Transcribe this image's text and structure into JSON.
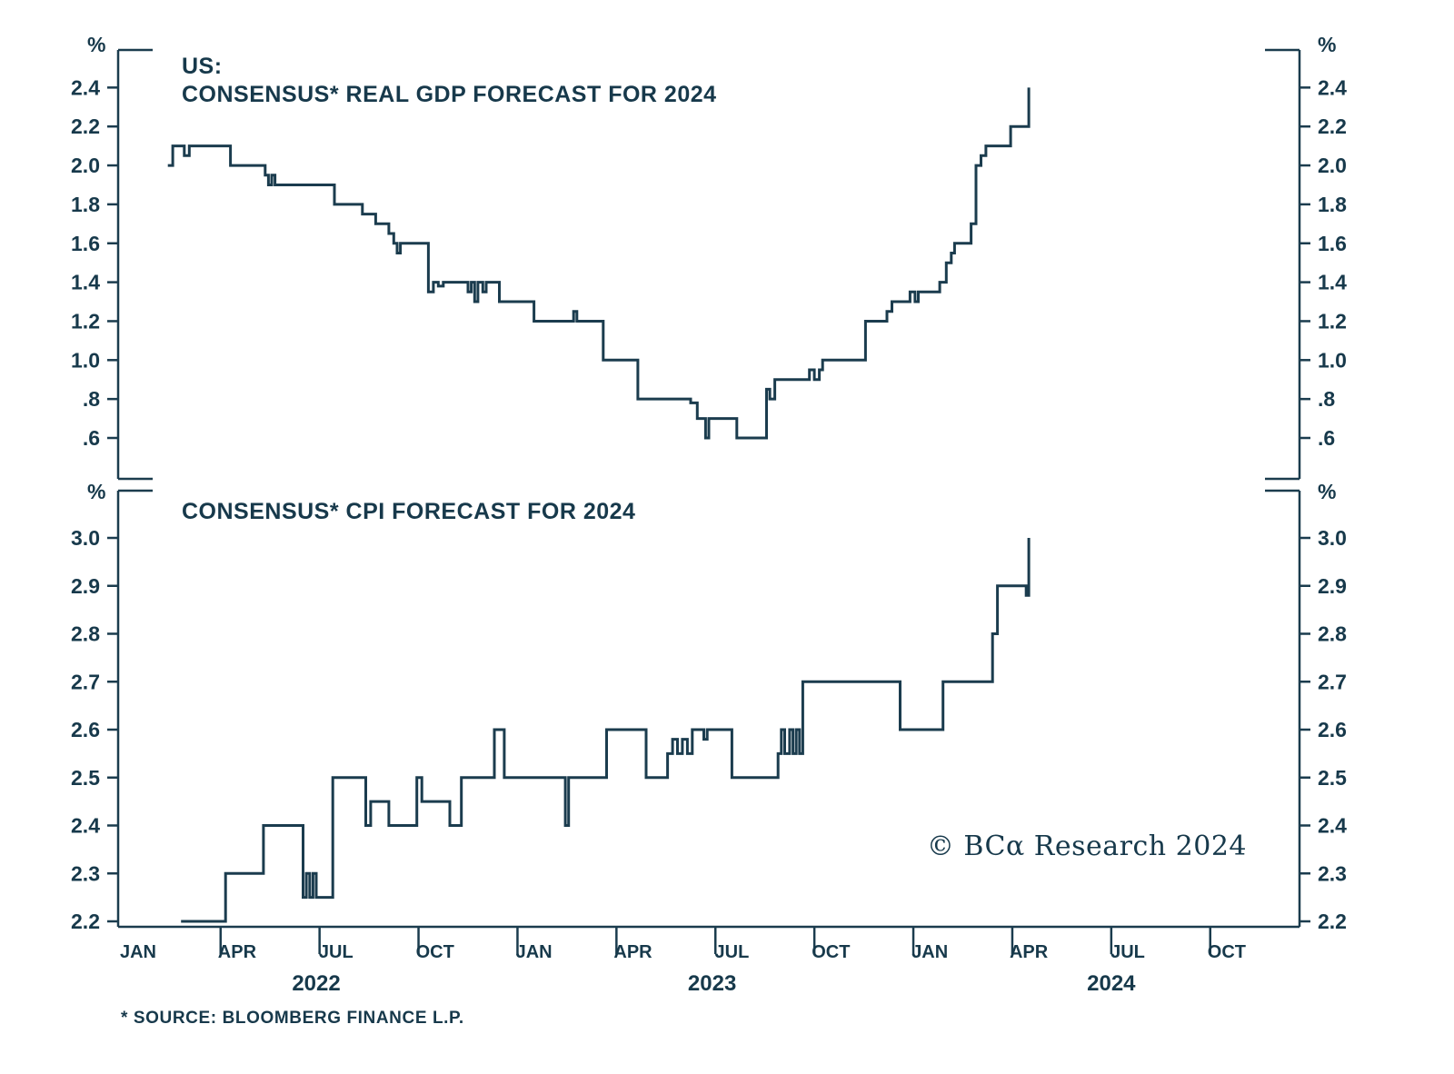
{
  "colors": {
    "line": "#1b3c4e",
    "text": "#17394b"
  },
  "branding": {
    "copyright": "© BCα Research 2024"
  },
  "footer": {
    "source_note": "* SOURCE: BLOOMBERG FINANCE L.P."
  },
  "x_axis": {
    "ticks": [
      {
        "month": 0,
        "label": "JAN"
      },
      {
        "month": 3,
        "label": "APR"
      },
      {
        "month": 6,
        "label": "JUL"
      },
      {
        "month": 9,
        "label": "OCT"
      },
      {
        "month": 12,
        "label": "JAN"
      },
      {
        "month": 15,
        "label": "APR"
      },
      {
        "month": 18,
        "label": "JUL"
      },
      {
        "month": 21,
        "label": "OCT"
      },
      {
        "month": 24,
        "label": "JAN"
      },
      {
        "month": 27,
        "label": "APR"
      },
      {
        "month": 30,
        "label": "JUL"
      },
      {
        "month": 33,
        "label": "OCT"
      }
    ],
    "minor_tick_months": [
      2.5,
      5.5,
      8.5,
      11.5,
      14.5,
      17.5,
      20.5,
      23.5,
      26.5,
      29.5,
      32.5
    ],
    "years": [
      {
        "month": 5.4,
        "label": "2022"
      },
      {
        "month": 17.4,
        "label": "2023"
      },
      {
        "month": 29.5,
        "label": "2024"
      }
    ]
  },
  "chart_data": [
    {
      "type": "line",
      "style": "step",
      "title_line1": "US:",
      "title_line2": "CONSENSUS* REAL GDP FORECAST FOR 2024",
      "unit": "%",
      "ylim": [
        0.5,
        2.55
      ],
      "yticks": [
        {
          "value": 2.4,
          "label": "2.4"
        },
        {
          "value": 2.2,
          "label": "2.2"
        },
        {
          "value": 2.0,
          "label": "2.0"
        },
        {
          "value": 1.8,
          "label": "1.8"
        },
        {
          "value": 1.6,
          "label": "1.6"
        },
        {
          "value": 1.4,
          "label": "1.4"
        },
        {
          "value": 1.2,
          "label": "1.2"
        },
        {
          "value": 1.0,
          "label": "1.0"
        },
        {
          "value": 0.8,
          "label": ".8"
        },
        {
          "value": 0.6,
          "label": ".6"
        }
      ],
      "series": [
        {
          "name": "consensus-real-gdp-forecast-2024",
          "points": [
            [
              0.9,
              2.0
            ],
            [
              1.05,
              2.1
            ],
            [
              1.4,
              2.05
            ],
            [
              1.55,
              2.1
            ],
            [
              2.7,
              2.1
            ],
            [
              2.8,
              2.0
            ],
            [
              3.75,
              2.0
            ],
            [
              3.85,
              1.95
            ],
            [
              3.95,
              1.9
            ],
            [
              4.05,
              1.95
            ],
            [
              4.15,
              1.9
            ],
            [
              5.85,
              1.9
            ],
            [
              5.95,
              1.8
            ],
            [
              6.7,
              1.8
            ],
            [
              6.8,
              1.75
            ],
            [
              7.1,
              1.75
            ],
            [
              7.2,
              1.7
            ],
            [
              7.5,
              1.7
            ],
            [
              7.6,
              1.65
            ],
            [
              7.75,
              1.6
            ],
            [
              7.85,
              1.55
            ],
            [
              7.95,
              1.6
            ],
            [
              8.7,
              1.6
            ],
            [
              8.8,
              1.35
            ],
            [
              8.95,
              1.4
            ],
            [
              9.1,
              1.38
            ],
            [
              9.25,
              1.4
            ],
            [
              9.9,
              1.4
            ],
            [
              10.0,
              1.35
            ],
            [
              10.1,
              1.4
            ],
            [
              10.2,
              1.3
            ],
            [
              10.3,
              1.4
            ],
            [
              10.45,
              1.35
            ],
            [
              10.55,
              1.4
            ],
            [
              10.85,
              1.4
            ],
            [
              10.95,
              1.3
            ],
            [
              11.9,
              1.3
            ],
            [
              12.0,
              1.2
            ],
            [
              13.1,
              1.2
            ],
            [
              13.2,
              1.25
            ],
            [
              13.3,
              1.2
            ],
            [
              14.0,
              1.2
            ],
            [
              14.1,
              1.0
            ],
            [
              15.0,
              1.0
            ],
            [
              15.15,
              0.8
            ],
            [
              16.6,
              0.8
            ],
            [
              16.75,
              0.78
            ],
            [
              16.95,
              0.7
            ],
            [
              17.1,
              0.7
            ],
            [
              17.2,
              0.6
            ],
            [
              17.3,
              0.7
            ],
            [
              18.05,
              0.7
            ],
            [
              18.15,
              0.6
            ],
            [
              18.95,
              0.6
            ],
            [
              19.05,
              0.85
            ],
            [
              19.15,
              0.8
            ],
            [
              19.3,
              0.9
            ],
            [
              20.2,
              0.9
            ],
            [
              20.35,
              0.95
            ],
            [
              20.5,
              0.9
            ],
            [
              20.65,
              0.95
            ],
            [
              20.75,
              1.0
            ],
            [
              21.9,
              1.0
            ],
            [
              22.05,
              1.2
            ],
            [
              22.6,
              1.2
            ],
            [
              22.7,
              1.25
            ],
            [
              22.85,
              1.3
            ],
            [
              23.3,
              1.3
            ],
            [
              23.4,
              1.35
            ],
            [
              23.55,
              1.3
            ],
            [
              23.65,
              1.35
            ],
            [
              24.2,
              1.35
            ],
            [
              24.3,
              1.4
            ],
            [
              24.5,
              1.5
            ],
            [
              24.65,
              1.55
            ],
            [
              24.75,
              1.6
            ],
            [
              25.1,
              1.6
            ],
            [
              25.25,
              1.7
            ],
            [
              25.4,
              2.0
            ],
            [
              25.55,
              2.05
            ],
            [
              25.7,
              2.1
            ],
            [
              26.35,
              2.1
            ],
            [
              26.45,
              2.2
            ],
            [
              26.9,
              2.2
            ],
            [
              27.0,
              2.4
            ]
          ]
        }
      ]
    },
    {
      "type": "line",
      "style": "step",
      "title": "CONSENSUS* CPI FORECAST FOR 2024",
      "unit": "%",
      "ylim": [
        2.15,
        3.05
      ],
      "yticks": [
        {
          "value": 3.0,
          "label": "3.0"
        },
        {
          "value": 2.9,
          "label": "2.9"
        },
        {
          "value": 2.8,
          "label": "2.8"
        },
        {
          "value": 2.7,
          "label": "2.7"
        },
        {
          "value": 2.6,
          "label": "2.6"
        },
        {
          "value": 2.5,
          "label": "2.5"
        },
        {
          "value": 2.4,
          "label": "2.4"
        },
        {
          "value": 2.3,
          "label": "2.3"
        },
        {
          "value": 2.2,
          "label": "2.2"
        }
      ],
      "series": [
        {
          "name": "consensus-cpi-forecast-2024",
          "points": [
            [
              1.3,
              2.2
            ],
            [
              2.55,
              2.2
            ],
            [
              2.65,
              2.3
            ],
            [
              3.7,
              2.3
            ],
            [
              3.8,
              2.4
            ],
            [
              4.9,
              2.4
            ],
            [
              5.0,
              2.25
            ],
            [
              5.1,
              2.3
            ],
            [
              5.2,
              2.25
            ],
            [
              5.3,
              2.3
            ],
            [
              5.4,
              2.25
            ],
            [
              5.6,
              2.25
            ],
            [
              5.9,
              2.5
            ],
            [
              6.8,
              2.5
            ],
            [
              6.9,
              2.4
            ],
            [
              7.05,
              2.45
            ],
            [
              7.5,
              2.45
            ],
            [
              7.6,
              2.4
            ],
            [
              8.35,
              2.4
            ],
            [
              8.45,
              2.5
            ],
            [
              8.6,
              2.45
            ],
            [
              9.35,
              2.45
            ],
            [
              9.45,
              2.4
            ],
            [
              9.7,
              2.4
            ],
            [
              9.8,
              2.5
            ],
            [
              10.7,
              2.5
            ],
            [
              10.8,
              2.6
            ],
            [
              11.0,
              2.6
            ],
            [
              11.1,
              2.5
            ],
            [
              12.85,
              2.5
            ],
            [
              12.95,
              2.4
            ],
            [
              13.05,
              2.5
            ],
            [
              14.1,
              2.5
            ],
            [
              14.2,
              2.6
            ],
            [
              15.3,
              2.6
            ],
            [
              15.4,
              2.5
            ],
            [
              15.95,
              2.5
            ],
            [
              16.05,
              2.55
            ],
            [
              16.2,
              2.58
            ],
            [
              16.35,
              2.55
            ],
            [
              16.5,
              2.58
            ],
            [
              16.65,
              2.55
            ],
            [
              16.8,
              2.6
            ],
            [
              17.05,
              2.6
            ],
            [
              17.15,
              2.58
            ],
            [
              17.25,
              2.6
            ],
            [
              17.9,
              2.6
            ],
            [
              18.0,
              2.5
            ],
            [
              19.3,
              2.5
            ],
            [
              19.4,
              2.55
            ],
            [
              19.5,
              2.6
            ],
            [
              19.6,
              2.55
            ],
            [
              19.75,
              2.6
            ],
            [
              19.85,
              2.55
            ],
            [
              19.95,
              2.6
            ],
            [
              20.05,
              2.55
            ],
            [
              20.15,
              2.7
            ],
            [
              23.0,
              2.7
            ],
            [
              23.1,
              2.6
            ],
            [
              24.3,
              2.6
            ],
            [
              24.4,
              2.7
            ],
            [
              25.8,
              2.7
            ],
            [
              25.9,
              2.8
            ],
            [
              26.05,
              2.9
            ],
            [
              26.85,
              2.9
            ],
            [
              26.92,
              2.88
            ],
            [
              27.0,
              3.0
            ]
          ]
        }
      ]
    }
  ]
}
